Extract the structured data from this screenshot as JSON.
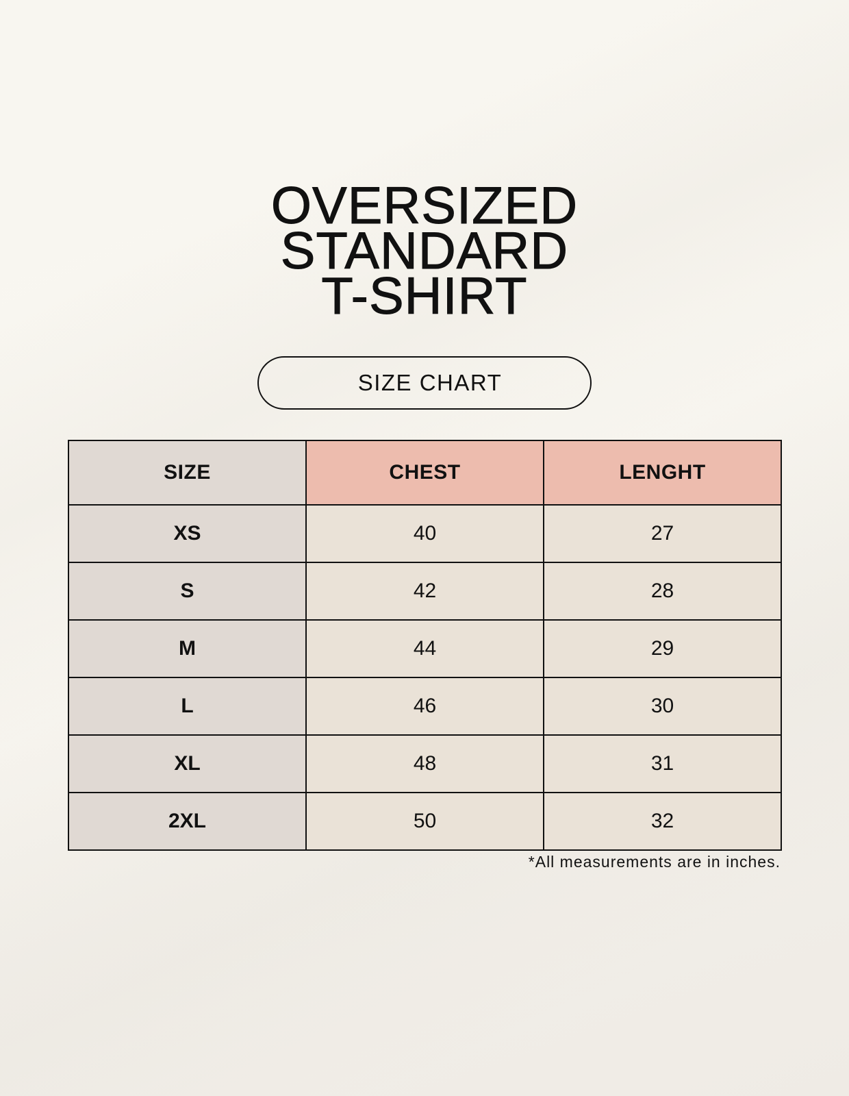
{
  "title": {
    "line1": "OVERSIZED",
    "line2": "STANDARD",
    "line3": "T-SHIRT"
  },
  "badge": "SIZE CHART",
  "table": {
    "headers": [
      "SIZE",
      "CHEST",
      "LENGHT"
    ],
    "rows": [
      [
        "XS",
        "40",
        "27"
      ],
      [
        "S",
        "42",
        "28"
      ],
      [
        "M",
        "44",
        "29"
      ],
      [
        "L",
        "46",
        "30"
      ],
      [
        "XL",
        "48",
        "31"
      ],
      [
        "2XL",
        "50",
        "32"
      ]
    ]
  },
  "footnote": "*All measurements are in inches.",
  "colors": {
    "size_column": "#e0d9d3",
    "header_accent": "#edbcae",
    "value_cells": "#eae2d7"
  }
}
